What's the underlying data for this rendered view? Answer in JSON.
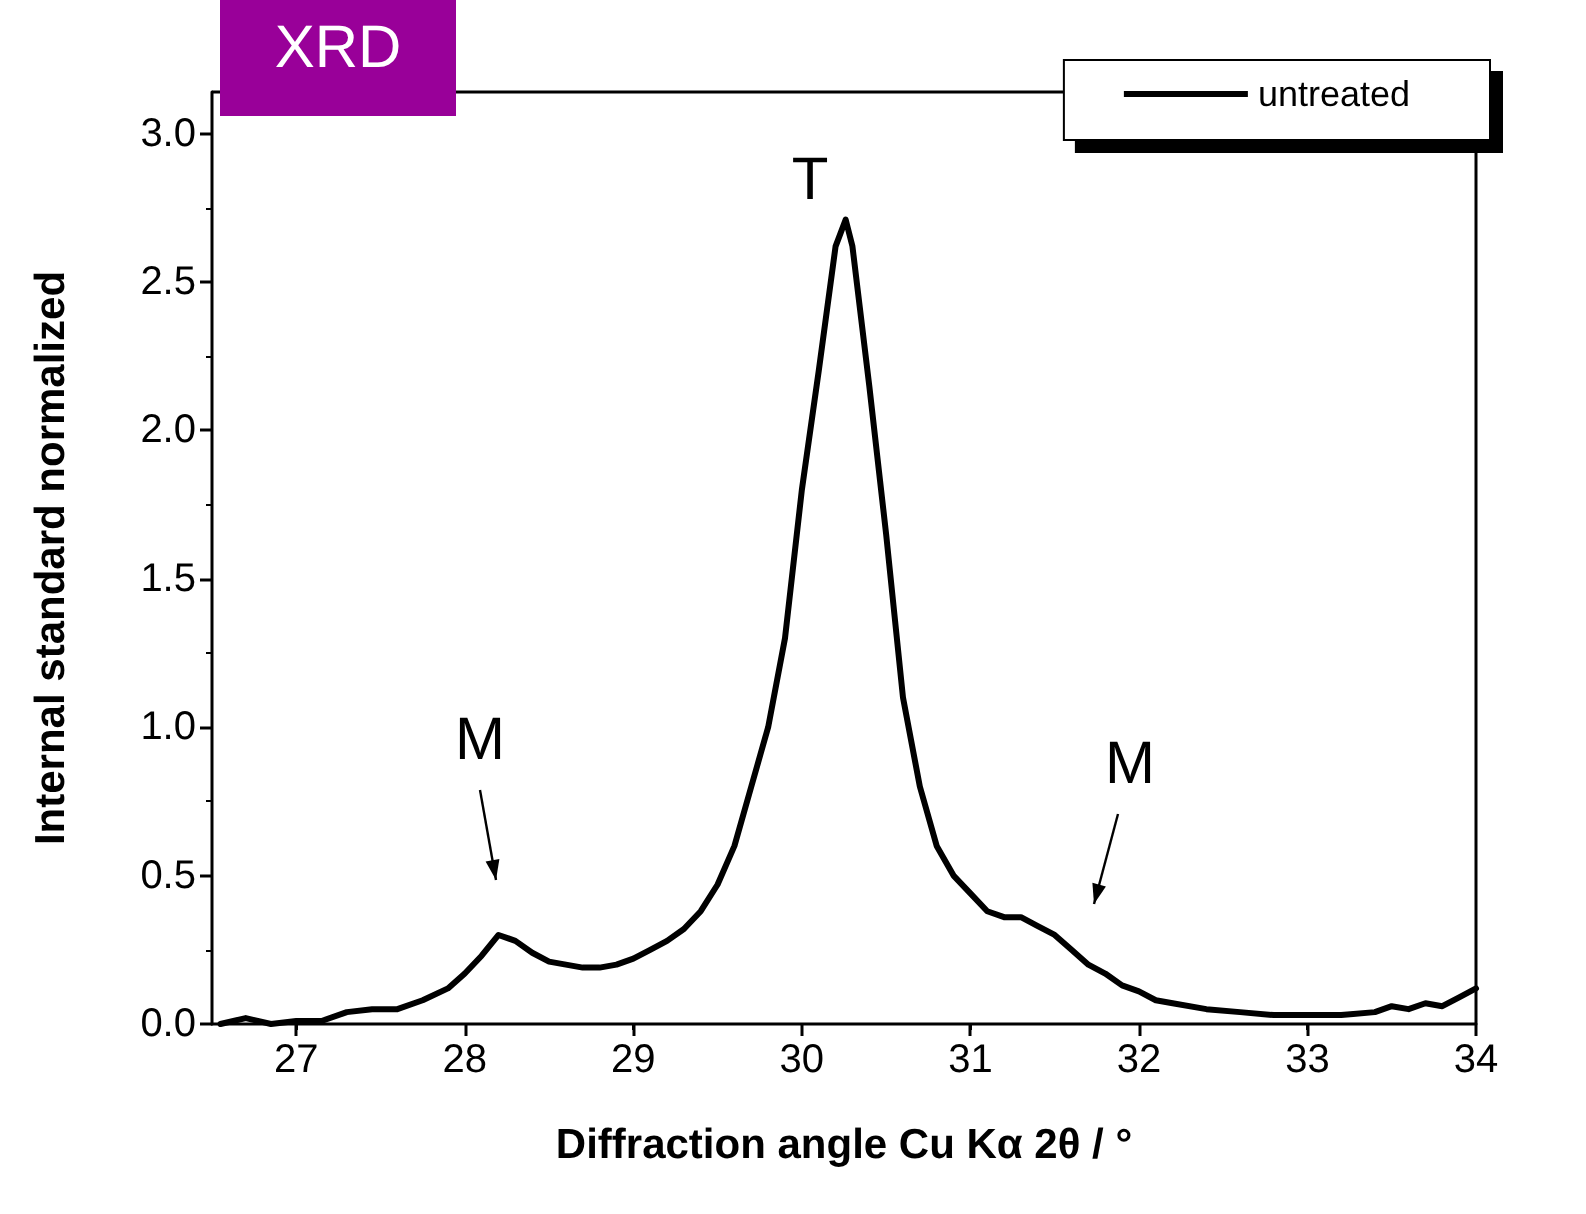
{
  "chart_data": {
    "type": "line",
    "xlabel": "Diffraction angle Cu Kα 2θ / °",
    "ylabel": "Internal standard normalized",
    "annotations": [
      "XRD",
      "T",
      "M",
      "M"
    ],
    "series": [
      {
        "name": "untreated",
        "color": "#000000",
        "x": [
          26.55,
          26.7,
          26.85,
          27.0,
          27.15,
          27.3,
          27.45,
          27.6,
          27.75,
          27.9,
          28.0,
          28.1,
          28.2,
          28.3,
          28.4,
          28.5,
          28.6,
          28.7,
          28.8,
          28.9,
          29.0,
          29.1,
          29.2,
          29.3,
          29.4,
          29.5,
          29.6,
          29.7,
          29.8,
          29.9,
          30.0,
          30.1,
          30.2,
          30.26,
          30.3,
          30.4,
          30.5,
          30.6,
          30.7,
          30.8,
          30.9,
          31.0,
          31.1,
          31.2,
          31.3,
          31.4,
          31.5,
          31.6,
          31.7,
          31.8,
          31.9,
          32.0,
          32.1,
          32.2,
          32.4,
          32.6,
          32.8,
          33.0,
          33.2,
          33.4,
          33.5,
          33.6,
          33.7,
          33.8,
          33.9,
          34.0
        ],
        "values": [
          0.0,
          0.02,
          0.0,
          0.01,
          0.01,
          0.04,
          0.05,
          0.05,
          0.08,
          0.12,
          0.17,
          0.23,
          0.3,
          0.28,
          0.24,
          0.21,
          0.2,
          0.19,
          0.19,
          0.2,
          0.22,
          0.25,
          0.28,
          0.32,
          0.38,
          0.47,
          0.6,
          0.8,
          1.0,
          1.3,
          1.8,
          2.2,
          2.62,
          2.71,
          2.62,
          2.15,
          1.65,
          1.1,
          0.8,
          0.6,
          0.5,
          0.44,
          0.38,
          0.36,
          0.36,
          0.33,
          0.3,
          0.25,
          0.2,
          0.17,
          0.13,
          0.11,
          0.08,
          0.07,
          0.05,
          0.04,
          0.03,
          0.03,
          0.03,
          0.04,
          0.06,
          0.05,
          0.07,
          0.06,
          0.09,
          0.12
        ]
      }
    ],
    "xlim": [
      26.5,
      34
    ],
    "xticks": [
      27,
      28,
      29,
      30,
      31,
      32,
      33,
      34
    ],
    "ylim": [
      0,
      3.14
    ],
    "yticks": [
      {
        "value": 0,
        "label": "0.0"
      },
      {
        "value": 0.5,
        "label": "0.5"
      },
      {
        "value": 1,
        "label": "1.0"
      },
      {
        "value": 1.5,
        "label": "1.5"
      },
      {
        "value": 2,
        "label": "2.0"
      },
      {
        "value": 2.5,
        "label": "2.5"
      },
      {
        "value": 3,
        "label": "3.0"
      }
    ],
    "grid": false,
    "legend": "top right",
    "marker": "none",
    "line_style": "solid"
  }
}
